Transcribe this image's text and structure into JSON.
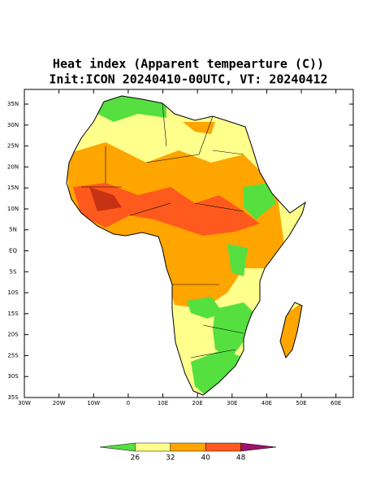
{
  "title": "Heat index (Apparent tempearture (C))",
  "subtitle": "Init:ICON 20240410-00UTC, VT: 20240412",
  "map": {
    "xlim": [
      -30,
      65
    ],
    "ylim": [
      -35,
      38.5
    ],
    "xticks": [
      {
        "value": -30,
        "label": "30W"
      },
      {
        "value": -20,
        "label": "20W"
      },
      {
        "value": -10,
        "label": "10W"
      },
      0,
      {
        "value": 10,
        "label": "10E"
      },
      {
        "value": 20,
        "label": "20E"
      },
      {
        "value": 30,
        "label": "30E"
      },
      {
        "value": 40,
        "label": "40E"
      },
      {
        "value": 50,
        "label": "50E"
      },
      {
        "value": 60,
        "label": "60E"
      }
    ],
    "yticks": [
      {
        "value": 35,
        "label": "35N"
      },
      {
        "value": 30,
        "label": "30N"
      },
      {
        "value": 25,
        "label": "25N"
      },
      {
        "value": 20,
        "label": "20N"
      },
      {
        "value": 15,
        "label": "15N"
      },
      {
        "value": 10,
        "label": "10N"
      },
      {
        "value": 5,
        "label": "5N"
      },
      {
        "value": 0,
        "label": "EQ"
      },
      {
        "value": -5,
        "label": "5S"
      },
      {
        "value": -10,
        "label": "10S"
      },
      {
        "value": -15,
        "label": "15S"
      },
      {
        "value": -20,
        "label": "20S"
      },
      {
        "value": -25,
        "label": "25S"
      },
      {
        "value": -30,
        "label": "30S"
      },
      {
        "value": -35,
        "label": "35S"
      }
    ]
  },
  "colorbar": {
    "levels": [
      26,
      32,
      40,
      48
    ],
    "colors": [
      "#55e040",
      "#ffff8c",
      "#ffa500",
      "#ff5a1e",
      "#a0106e"
    ]
  }
}
